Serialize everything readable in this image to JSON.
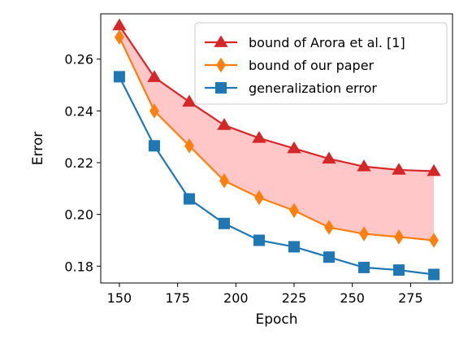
{
  "chart_data": {
    "type": "line",
    "xlabel": "Epoch",
    "ylabel": "Error",
    "xlim": [
      142,
      293
    ],
    "ylim": [
      0.1735,
      0.2775
    ],
    "x_ticks": [
      150,
      175,
      200,
      225,
      250,
      275
    ],
    "y_ticks": [
      0.18,
      0.2,
      0.22,
      0.24,
      0.26
    ],
    "x": [
      150,
      165,
      180,
      195,
      210,
      225,
      240,
      255,
      270,
      285
    ],
    "series": [
      {
        "name": "bound of Arora et al. [1]",
        "color": "#d62728",
        "marker": "triangle-up",
        "values": [
          0.273,
          0.253,
          0.2435,
          0.2345,
          0.2295,
          0.2255,
          0.2215,
          0.2185,
          0.2172,
          0.2167
        ]
      },
      {
        "name": "bound of our paper",
        "color": "#ff7f0e",
        "marker": "diamond",
        "values": [
          0.2685,
          0.24,
          0.2265,
          0.213,
          0.2065,
          0.2015,
          0.195,
          0.1925,
          0.1913,
          0.19
        ]
      },
      {
        "name": "generalization error",
        "color": "#1f77b4",
        "marker": "square",
        "values": [
          0.2532,
          0.2265,
          0.206,
          0.1965,
          0.19,
          0.1875,
          0.1835,
          0.1795,
          0.1785,
          0.1768
        ]
      }
    ],
    "fill_between": {
      "upper": "bound of Arora et al. [1]",
      "lower": "bound of our paper",
      "color": "#ffc7c7"
    },
    "grid": false,
    "legend_position": "top-right"
  }
}
